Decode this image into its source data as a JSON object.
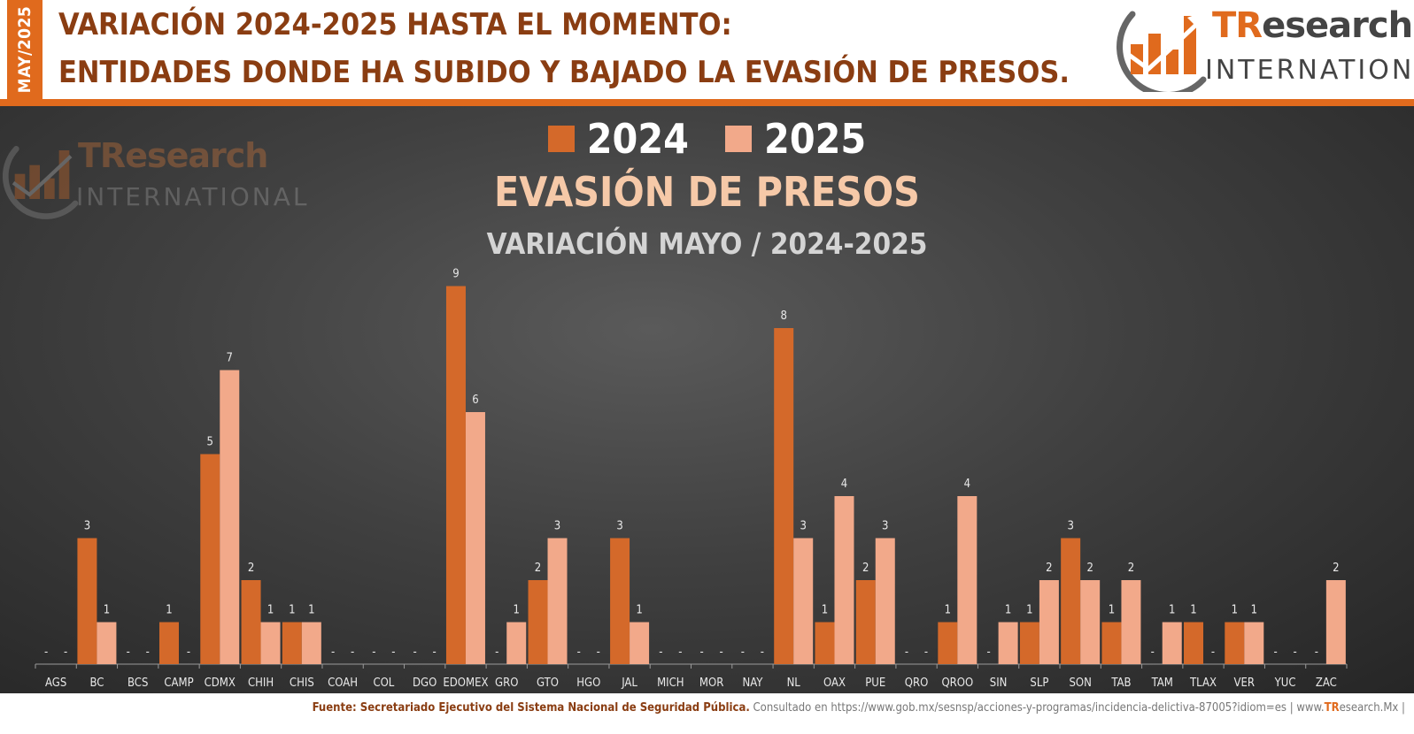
{
  "header": {
    "date_tab": "MAY/2025",
    "title_line1": "VARIACIÓN 2024-2025 HASTA EL MOMENTO:",
    "title_line2": "ENTIDADES DONDE HA SUBIDO Y BAJADO LA EVASIÓN DE PRESOS."
  },
  "logo": {
    "word_part1": "TR",
    "word_part2": "esearch",
    "sub": "INTERNATIONAL"
  },
  "colors": {
    "accent": "#e06a1d",
    "series_2024": "#d4692a",
    "series_2025": "#f2a98a",
    "title_dark": "#8a3d12"
  },
  "chart_data": {
    "type": "bar",
    "title": "EVASIÓN DE PRESOS",
    "subtitle": "VARIACIÓN MAYO / 2024-2025",
    "categories": [
      "AGS",
      "BC",
      "BCS",
      "CAMP",
      "CDMX",
      "CHIH",
      "CHIS",
      "COAH",
      "COL",
      "DGO",
      "EDOMEX",
      "GRO",
      "GTO",
      "HGO",
      "JAL",
      "MICH",
      "MOR",
      "NAY",
      "NL",
      "OAX",
      "PUE",
      "QRO",
      "QROO",
      "SIN",
      "SLP",
      "SON",
      "TAB",
      "TAM",
      "TLAX",
      "VER",
      "YUC",
      "ZAC"
    ],
    "series": [
      {
        "name": "2024",
        "values": [
          0,
          3,
          0,
          1,
          5,
          2,
          1,
          0,
          0,
          0,
          9,
          0,
          2,
          0,
          3,
          0,
          0,
          0,
          8,
          1,
          2,
          0,
          1,
          0,
          1,
          3,
          1,
          0,
          1,
          1,
          0,
          0
        ]
      },
      {
        "name": "2025",
        "values": [
          0,
          1,
          0,
          0,
          7,
          1,
          1,
          0,
          0,
          0,
          6,
          1,
          3,
          0,
          1,
          0,
          0,
          0,
          3,
          4,
          3,
          0,
          4,
          1,
          2,
          2,
          2,
          1,
          0,
          1,
          0,
          2
        ]
      }
    ],
    "zero_label": "-",
    "ylim": [
      0,
      9
    ],
    "legend_position": "top-center",
    "grid": false
  },
  "footer": {
    "source_lead": "Fuente: Secretariado Ejecutivo del Sistema Nacional de Seguridad Pública.",
    "source_rest": "Consultado en https://www.gob.mx/sesnsp/acciones-y-programas/incidencia-delictiva-87005?idiom=es | www.",
    "site_tr": "TR",
    "site_rest": "esearch.Mx |"
  }
}
